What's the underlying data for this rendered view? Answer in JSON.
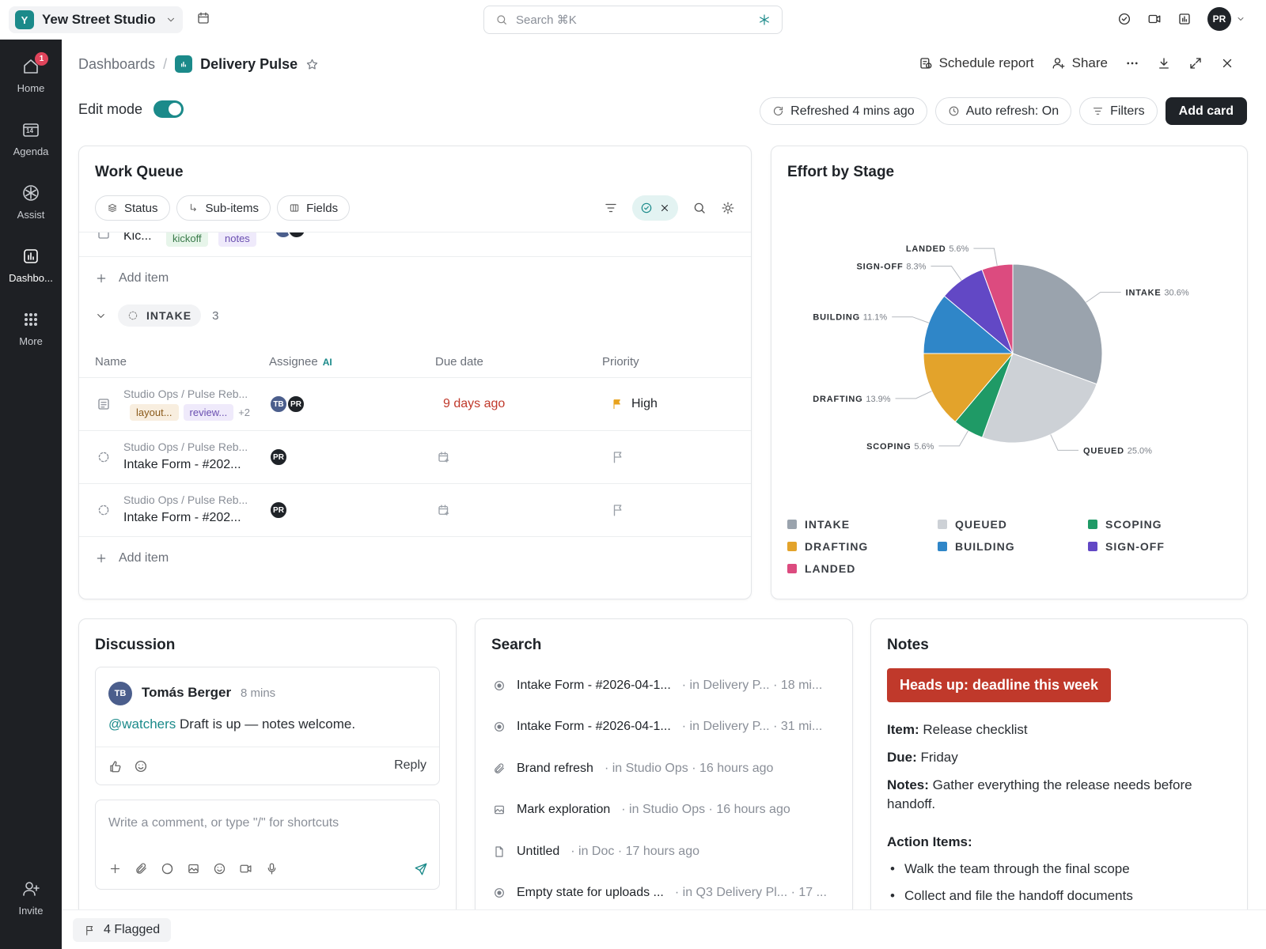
{
  "topbar": {
    "workspace_initial": "Y",
    "workspace_name": "Yew Street Studio",
    "search_placeholder": "Search ⌘K",
    "user_initials": "PR"
  },
  "sidebar": {
    "items": [
      {
        "label": "Home",
        "badge": "1"
      },
      {
        "label": "Agenda",
        "icon_text": "14"
      },
      {
        "label": "Assist"
      },
      {
        "label": "Dashbo..."
      },
      {
        "label": "More"
      }
    ],
    "invite_label": "Invite"
  },
  "header": {
    "breadcrumb_root": "Dashboards",
    "breadcrumb_sep": "/",
    "title": "Delivery Pulse",
    "actions": {
      "schedule": "Schedule report",
      "share": "Share"
    },
    "edit_mode_label": "Edit mode",
    "refreshed": "Refreshed 4 mins ago",
    "auto_refresh": "Auto refresh: On",
    "filters": "Filters",
    "add_card": "Add card"
  },
  "work_queue": {
    "title": "Work Queue",
    "chips": [
      "Status",
      "Sub-items",
      "Fields"
    ],
    "partial_row": {
      "name": "Kic...",
      "tags": [
        "kickoff",
        "notes"
      ]
    },
    "add_item": "Add item",
    "group": {
      "name": "INTAKE",
      "count": "3"
    },
    "columns": {
      "name": "Name",
      "assignee": "Assignee",
      "ai": "AI",
      "due": "Due date",
      "priority": "Priority"
    },
    "rows": [
      {
        "path": "Studio Ops / Pulse Reb...",
        "tags": [
          "layout...",
          "review..."
        ],
        "more_tags": "+2",
        "assignees": [
          "TB",
          "PR"
        ],
        "due": "9 days ago",
        "priority": "High"
      },
      {
        "path": "Studio Ops / Pulse Reb...",
        "name": "Intake Form - #202...",
        "assignees": [
          "PR"
        ]
      },
      {
        "path": "Studio Ops / Pulse Reb...",
        "name": "Intake Form - #202...",
        "assignees": [
          "PR"
        ]
      }
    ]
  },
  "effort": {
    "title": "Effort by Stage"
  },
  "chart_data": {
    "type": "pie",
    "title": "Effort by Stage",
    "slices": [
      {
        "label": "INTAKE",
        "value": 30.6,
        "pct": "30.6%",
        "color": "#9aa3ad"
      },
      {
        "label": "QUEUED",
        "value": 25.0,
        "pct": "25.0%",
        "color": "#cdd1d6"
      },
      {
        "label": "SCOPING",
        "value": 5.6,
        "pct": "5.6%",
        "color": "#1f9a66"
      },
      {
        "label": "DRAFTING",
        "value": 13.9,
        "pct": "13.9%",
        "color": "#e3a32b"
      },
      {
        "label": "BUILDING",
        "value": 11.1,
        "pct": "11.1%",
        "color": "#2f86c8"
      },
      {
        "label": "SIGN-OFF",
        "value": 8.3,
        "pct": "8.3%",
        "color": "#6248c5"
      },
      {
        "label": "LANDED",
        "value": 5.6,
        "pct": "5.6%",
        "color": "#dc4b7f"
      }
    ],
    "legend_order": [
      "INTAKE",
      "QUEUED",
      "SCOPING",
      "DRAFTING",
      "BUILDING",
      "SIGN-OFF",
      "LANDED"
    ],
    "legend_placement": "bottom"
  },
  "discussion": {
    "title": "Discussion",
    "comment": {
      "initials": "TB",
      "author": "Tomás Berger",
      "time": "8 mins",
      "mention": "@watchers",
      "text": " Draft is up — notes welcome.",
      "reply": "Reply"
    },
    "composer_placeholder": "Write a comment, or type \"/\" for shortcuts"
  },
  "search_card": {
    "title": "Search",
    "results": [
      {
        "icon": "target-icon",
        "title": "Intake Form - #2026-04-1...",
        "meta": "· in Delivery P... · 18 mi..."
      },
      {
        "icon": "target-icon",
        "title": "Intake Form - #2026-04-1...",
        "meta": "· in Delivery P... · 31 mi..."
      },
      {
        "icon": "paperclip-icon",
        "title": "Brand refresh",
        "meta": "· in Studio Ops · 16 hours ago"
      },
      {
        "icon": "image-icon",
        "title": "Mark exploration",
        "meta": "· in Studio Ops · 16 hours ago"
      },
      {
        "icon": "doc-icon",
        "title": "Untitled",
        "meta": "· in Doc · 17 hours ago"
      },
      {
        "icon": "target-icon",
        "title": "Empty state for uploads ...",
        "meta": "· in Q3 Delivery Pl... · 17 ..."
      }
    ]
  },
  "notes": {
    "title": "Notes",
    "alert": "Heads up: deadline this week",
    "item_label": "Item:",
    "item_value": " Release checklist",
    "due_label": "Due:",
    "due_value": " Friday",
    "notes_label": "Notes:",
    "notes_value": " Gather everything the release needs before handoff.",
    "action_items_label": "Action Items:",
    "action_items": [
      "Walk the team through the final scope",
      "Collect and file the handoff documents"
    ]
  },
  "bottom": {
    "flagged": "4 Flagged"
  }
}
